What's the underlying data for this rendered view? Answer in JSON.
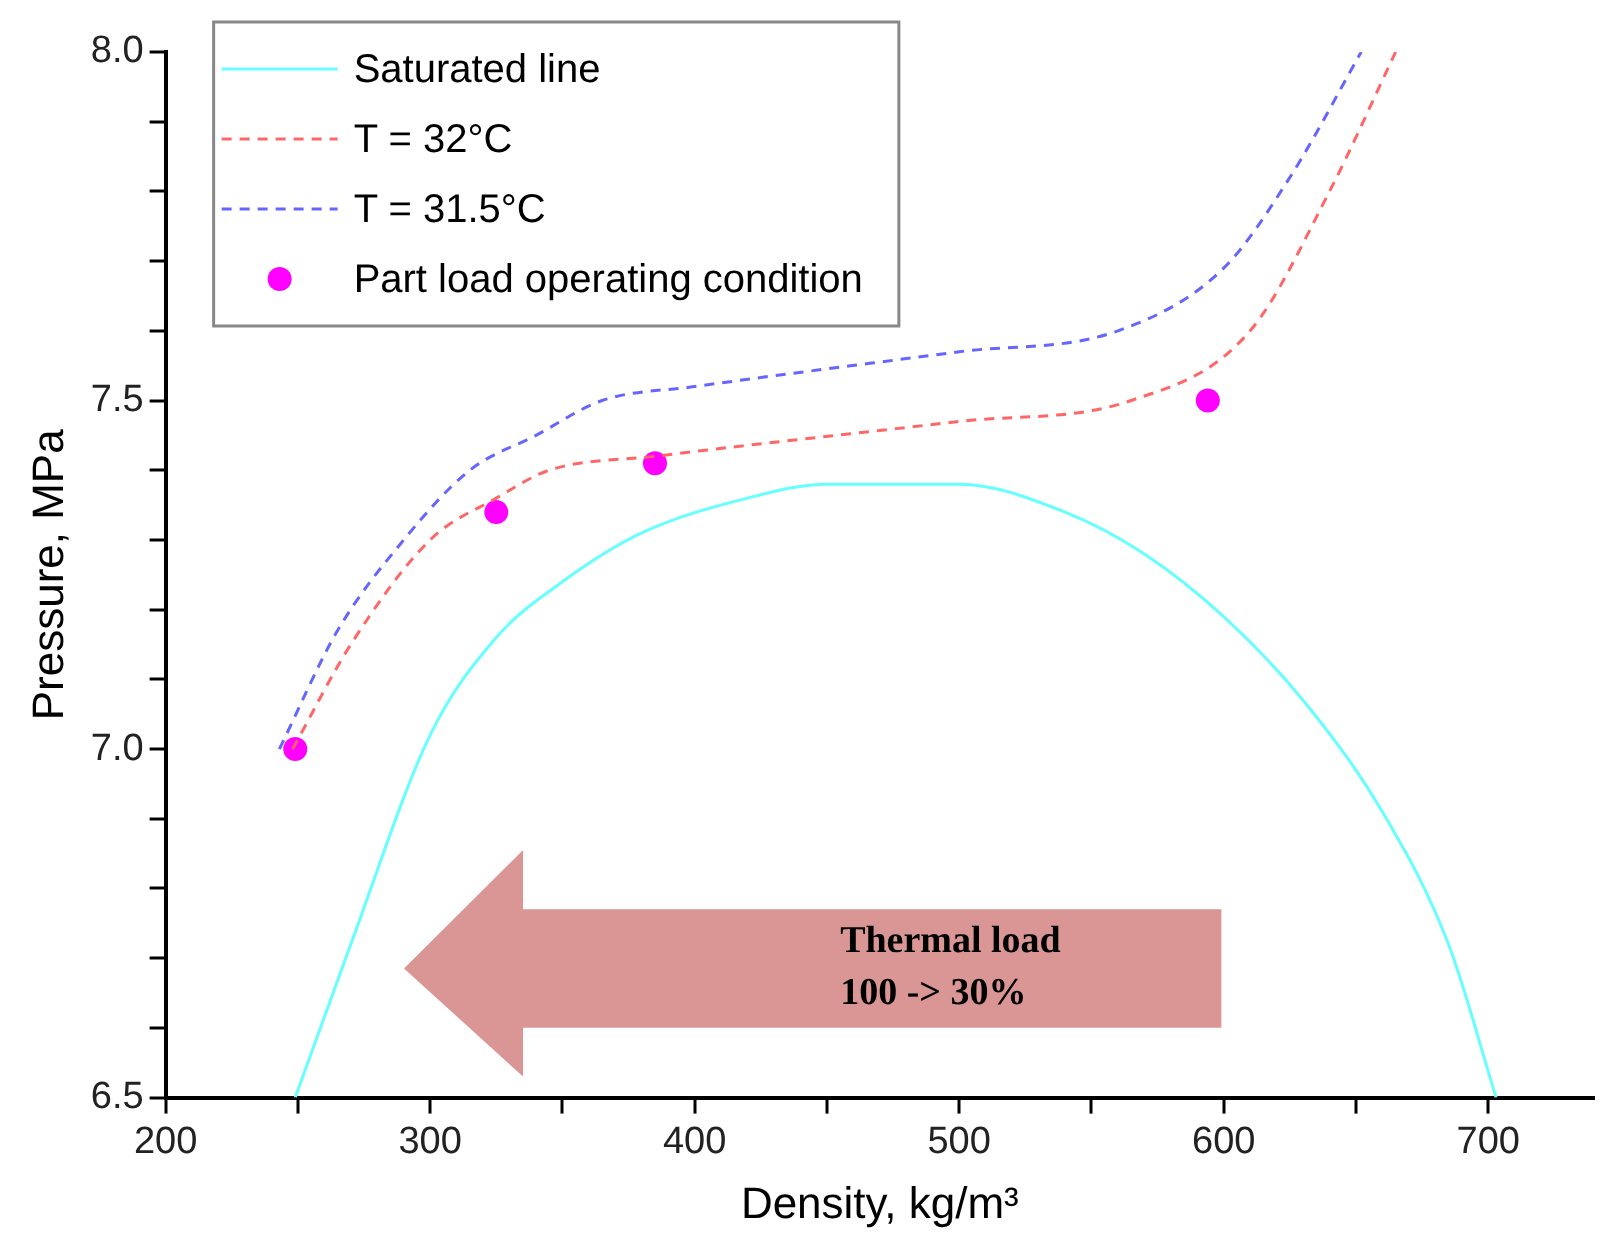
{
  "chart_data": {
    "type": "line",
    "xlabel": "Density, kg/m³",
    "ylabel": "Pressure, MPa",
    "xlim": [
      200,
      740
    ],
    "ylim": [
      6.5,
      8.0
    ],
    "xticks": [
      200,
      {
        "value": 250,
        "label": null
      },
      300,
      {
        "value": 350,
        "label": null
      },
      400,
      {
        "value": 450,
        "label": null
      },
      500,
      {
        "value": 550,
        "label": null
      },
      600,
      {
        "value": 650,
        "label": null
      },
      700
    ],
    "yticks": [
      {
        "value": 6.5,
        "label": "6.5"
      },
      {
        "value": 6.6,
        "label": null
      },
      {
        "value": 6.7,
        "label": null
      },
      {
        "value": 6.8,
        "label": null
      },
      {
        "value": 6.9,
        "label": null
      },
      {
        "value": 7.0,
        "label": "7.0"
      },
      {
        "value": 7.1,
        "label": null
      },
      {
        "value": 7.2,
        "label": null
      },
      {
        "value": 7.3,
        "label": null
      },
      {
        "value": 7.4,
        "label": null
      },
      {
        "value": 7.5,
        "label": "7.5"
      },
      {
        "value": 7.6,
        "label": null
      },
      {
        "value": 7.7,
        "label": null
      },
      {
        "value": 7.8,
        "label": null
      },
      {
        "value": 7.9,
        "label": null
      },
      {
        "value": 8.0,
        "label": "8.0"
      }
    ],
    "grid": false,
    "legend": "top left",
    "annotations": [
      "Thermal load",
      "100 -> 30%"
    ],
    "series": [
      {
        "name": "Saturated line",
        "type": "line",
        "color": "#66ffff",
        "line_style": "solid",
        "marker": "none",
        "x": [
          249,
          270,
          300,
          325,
          350,
          380,
          420,
          450,
          500,
          540,
          570,
          600,
          630,
          660,
          685,
          703
        ],
        "values": [
          6.5,
          6.72,
          7.02,
          7.16,
          7.24,
          7.31,
          7.36,
          7.38,
          7.38,
          7.34,
          7.28,
          7.19,
          7.07,
          6.91,
          6.72,
          6.5
        ]
      },
      {
        "name": "T = 32°C",
        "type": "line",
        "color": "#ff6666",
        "line_style": "dashed",
        "marker": "none",
        "x": [
          248,
          270,
          300,
          325,
          345,
          385,
          500,
          565,
          610,
          640,
          665
        ],
        "values": [
          7.0,
          7.15,
          7.3,
          7.36,
          7.4,
          7.42,
          7.47,
          7.5,
          7.6,
          7.8,
          8.0
        ]
      },
      {
        "name": "T = 31.5°C",
        "type": "line",
        "color": "#6666ff",
        "line_style": "dashed",
        "marker": "none",
        "x": [
          243,
          265,
          290,
          315,
          340,
          365,
          400,
          500,
          560,
          600,
          625,
          652
        ],
        "values": [
          7.0,
          7.17,
          7.3,
          7.4,
          7.45,
          7.5,
          7.52,
          7.57,
          7.6,
          7.69,
          7.82,
          8.0
        ]
      },
      {
        "name": "Part load operating condition",
        "type": "scatter",
        "color": "#ff00ff",
        "marker": "circle",
        "x": [
          249,
          325,
          385,
          594
        ],
        "values": [
          7.0,
          7.34,
          7.41,
          7.5
        ]
      }
    ]
  }
}
